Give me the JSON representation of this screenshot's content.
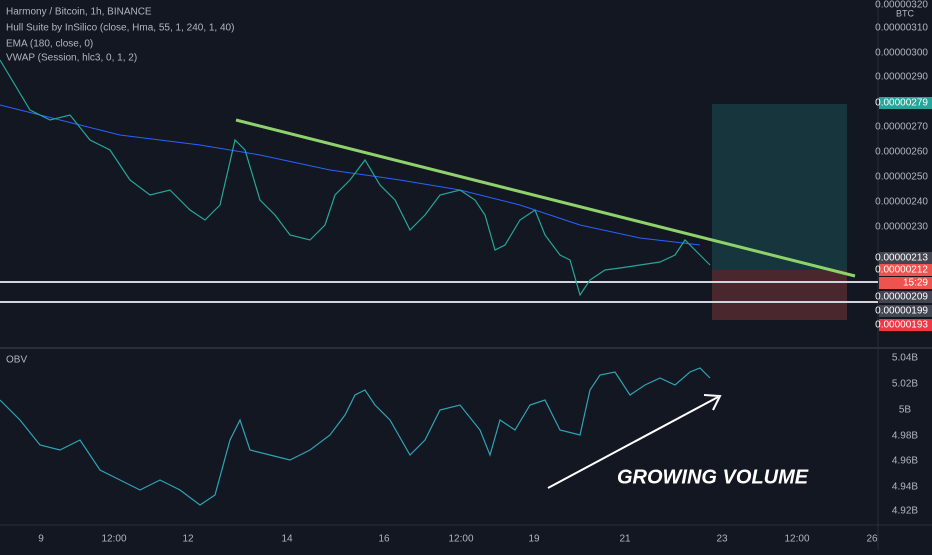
{
  "legend": {
    "symbol": "Harmony / Bitcoin, 1h, BINANCE",
    "indicators": [
      "Hull Suite by InSilico (close, Hma, 55, 1, 240, 1, 40)",
      "EMA (180, close, 0)",
      "VWAP (Session, hlc3, 0, 1, 2)"
    ]
  },
  "price_axis": {
    "currency": "BTC",
    "labels": [
      "0.00000320",
      "0.00000310",
      "0.00000300",
      "0.00000290",
      "0.00000270",
      "0.00000260",
      "0.00000250",
      "0.00000240",
      "0.00000230"
    ]
  },
  "badges": [
    {
      "text": "0.00000279",
      "color": "#26a69a"
    },
    {
      "text": "0.00000213",
      "color": "#434651"
    },
    {
      "text": "0.00000212",
      "color": "#ef5350"
    },
    {
      "text": "15:29",
      "color": "#ef5350"
    },
    {
      "text": "0.00000209",
      "color": "#434651"
    },
    {
      "text": "0.00000199",
      "color": "#434651"
    },
    {
      "text": "0.00000193",
      "color": "#f23645"
    }
  ],
  "obv": {
    "title": "OBV",
    "labels": [
      "5.04B",
      "5.02B",
      "5B",
      "4.98B",
      "4.96B",
      "4.94B",
      "4.92B"
    ]
  },
  "time_axis": [
    "9",
    "12:00",
    "12",
    "14",
    "16",
    "12:00",
    "19",
    "21",
    "23",
    "12:00",
    "26"
  ],
  "annotation": "GROWING VOLUME"
}
